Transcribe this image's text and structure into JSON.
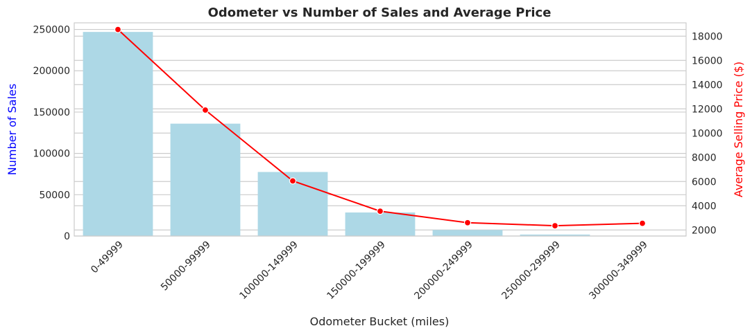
{
  "chart_data": {
    "type": "bar+line",
    "title": "Odometer vs Number of Sales and Average Price",
    "xlabel": "Odometer Bucket (miles)",
    "categories": [
      "0-49999",
      "50000-99999",
      "100000-149999",
      "150000-199999",
      "200000-249999",
      "250000-299999",
      "300000-349999"
    ],
    "bar_series": {
      "axis": "left",
      "ylabel": "Number of Sales",
      "ylim": [
        0,
        258000
      ],
      "ticks": [
        0,
        50000,
        100000,
        150000,
        200000,
        250000
      ],
      "values": [
        247000,
        136000,
        77500,
        28500,
        7300,
        1800,
        400
      ],
      "color": "#add8e6"
    },
    "line_series": {
      "axis": "right",
      "ylabel": "Average Selling Price ($)",
      "ylim": [
        1500,
        19100
      ],
      "ticks": [
        2000,
        4000,
        6000,
        8000,
        10000,
        12000,
        14000,
        16000,
        18000
      ],
      "values": [
        18550,
        11900,
        6050,
        3550,
        2600,
        2350,
        2550
      ],
      "color": "#ff0000"
    },
    "grid": true,
    "colors": {
      "left_label": "#0000ff",
      "right_label": "#ff0000",
      "grid": "#cccccc",
      "text": "#262626"
    }
  }
}
